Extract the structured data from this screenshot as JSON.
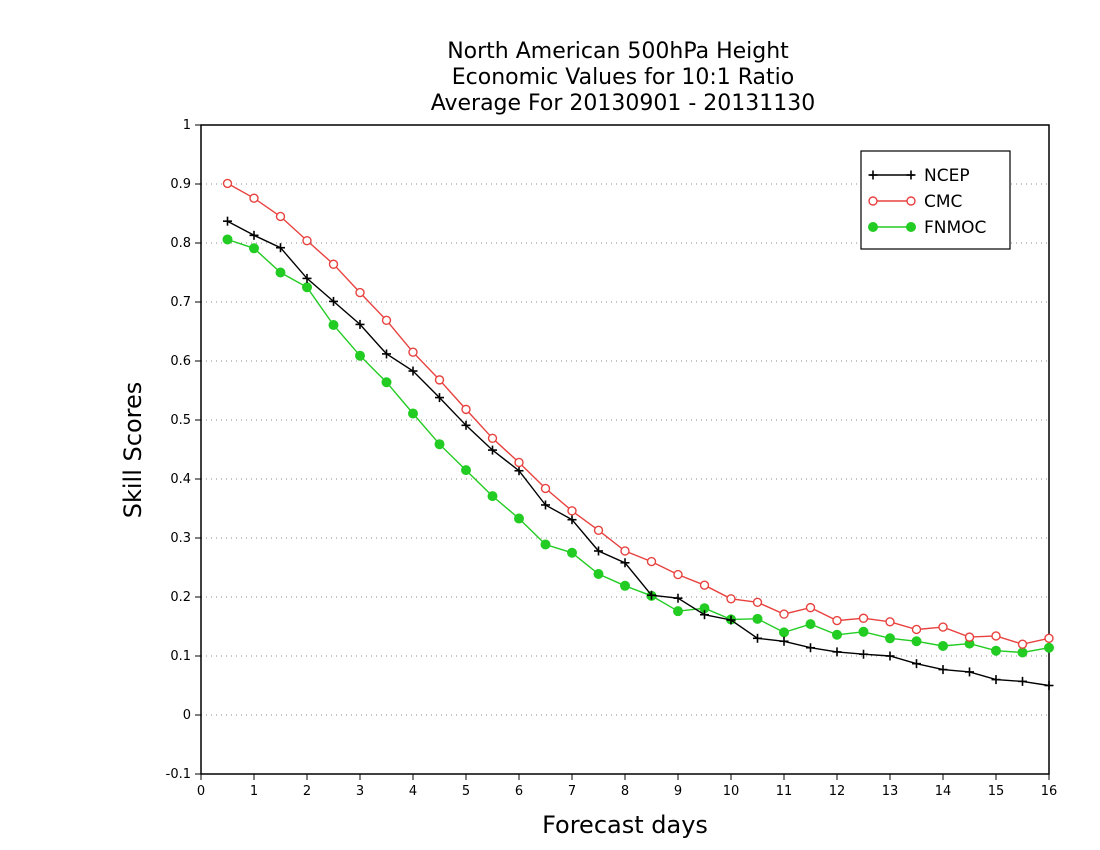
{
  "chart_data": {
    "type": "line",
    "title_lines": [
      "North American 500hPa Height",
      "Economic Values for 10:1 Ratio",
      "Average For 20130901 - 20131130"
    ],
    "xlabel": "Forecast days",
    "ylabel": "Skill Scores",
    "xlim": [
      0,
      16
    ],
    "ylim": [
      -0.1,
      1
    ],
    "xticks": [
      0,
      1,
      2,
      3,
      4,
      5,
      6,
      7,
      8,
      9,
      10,
      11,
      12,
      13,
      14,
      15,
      16
    ],
    "xtick_labels": [
      "0",
      "1",
      "2",
      "3",
      "4",
      "5",
      "6",
      "7",
      "8",
      "9",
      "10",
      "11",
      "12",
      "13",
      "14",
      "15",
      "16"
    ],
    "yticks": [
      -0.1,
      0,
      0.1,
      0.2,
      0.3,
      0.4,
      0.5,
      0.6,
      0.7,
      0.8,
      0.9,
      1
    ],
    "ytick_labels": [
      "-0.1",
      "0",
      "0.1",
      "0.2",
      "0.3",
      "0.4",
      "0.5",
      "0.6",
      "0.7",
      "0.8",
      "0.9",
      "1"
    ],
    "grid": "horizontal dotted",
    "legend_position": "top-right",
    "x": [
      0.5,
      1,
      1.5,
      2,
      2.5,
      3,
      3.5,
      4,
      4.5,
      5,
      5.5,
      6,
      6.5,
      7,
      7.5,
      8,
      8.5,
      9,
      9.5,
      10,
      10.5,
      11,
      11.5,
      12,
      12.5,
      13,
      13.5,
      14,
      14.5,
      15,
      15.5,
      16
    ],
    "series": [
      {
        "name": "NCEP",
        "color": "#000000",
        "marker": "plus",
        "values": [
          0.837,
          0.813,
          0.792,
          0.74,
          0.701,
          0.662,
          0.612,
          0.583,
          0.538,
          0.491,
          0.449,
          0.414,
          0.356,
          0.331,
          0.278,
          0.258,
          0.203,
          0.198,
          0.17,
          0.161,
          0.13,
          0.125,
          0.114,
          0.107,
          0.103,
          0.1,
          0.087,
          0.077,
          0.073,
          0.06,
          0.057,
          0.05
        ]
      },
      {
        "name": "CMC",
        "color": "#e8423f",
        "marker": "open-circle",
        "values": [
          0.901,
          0.876,
          0.845,
          0.804,
          0.764,
          0.716,
          0.669,
          0.615,
          0.568,
          0.518,
          0.469,
          0.428,
          0.384,
          0.346,
          0.313,
          0.278,
          0.26,
          0.238,
          0.22,
          0.197,
          0.191,
          0.171,
          0.182,
          0.16,
          0.164,
          0.158,
          0.145,
          0.149,
          0.132,
          0.134,
          0.12,
          0.13
        ]
      },
      {
        "name": "FNMOC",
        "color": "#22cc22",
        "marker": "filled-circle",
        "values": [
          0.806,
          0.791,
          0.75,
          0.725,
          0.661,
          0.609,
          0.564,
          0.511,
          0.459,
          0.415,
          0.371,
          0.333,
          0.289,
          0.275,
          0.239,
          0.219,
          0.202,
          0.176,
          0.181,
          0.162,
          0.163,
          0.14,
          0.154,
          0.136,
          0.141,
          0.13,
          0.125,
          0.117,
          0.121,
          0.109,
          0.106,
          0.114
        ]
      }
    ]
  }
}
